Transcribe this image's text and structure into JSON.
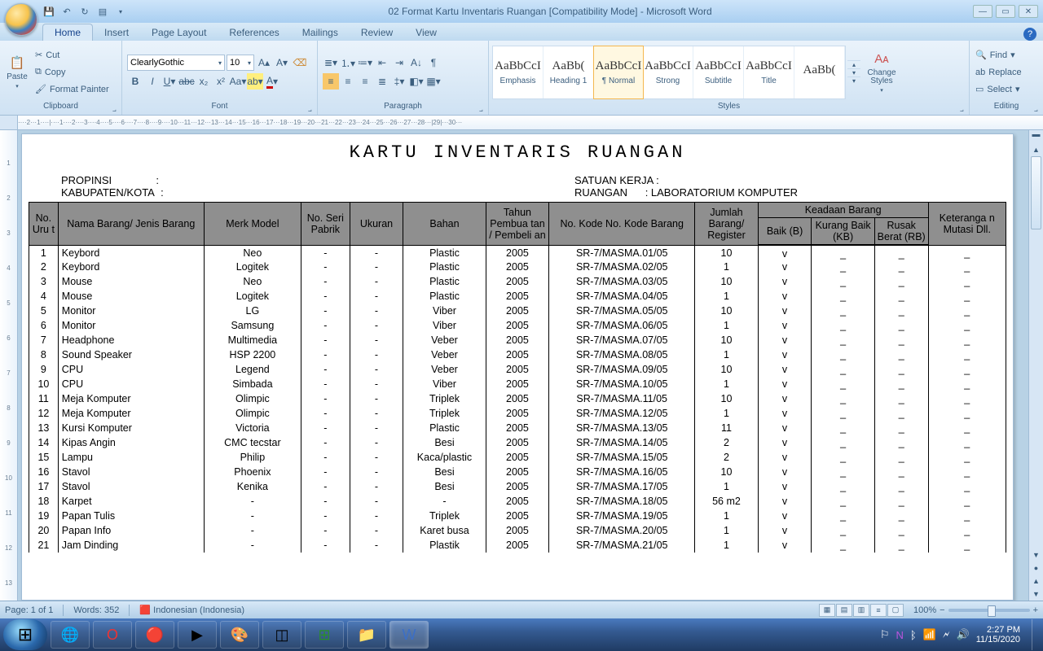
{
  "window": {
    "title": "02 Format Kartu Inventaris Ruangan [Compatibility Mode] - Microsoft Word"
  },
  "tabs": [
    "Home",
    "Insert",
    "Page Layout",
    "References",
    "Mailings",
    "Review",
    "View"
  ],
  "active_tab": "Home",
  "clipboard": {
    "label": "Clipboard",
    "paste": "Paste",
    "cut": "Cut",
    "copy": "Copy",
    "fmt": "Format Painter"
  },
  "font": {
    "label": "Font",
    "name": "ClearlyGothic",
    "size": "10"
  },
  "paragraph": {
    "label": "Paragraph"
  },
  "styles": {
    "label": "Styles",
    "items": [
      {
        "prev": "AaBbCcI",
        "name": "Emphasis"
      },
      {
        "prev": "AaBb(",
        "name": "Heading 1"
      },
      {
        "prev": "AaBbCcI",
        "name": "¶ Normal",
        "sel": true
      },
      {
        "prev": "AaBbCcI",
        "name": "Strong"
      },
      {
        "prev": "AaBbCcI",
        "name": "Subtitle"
      },
      {
        "prev": "AaBbCcI",
        "name": "Title"
      },
      {
        "prev": "AaBb(",
        "name": ""
      }
    ],
    "change": "Change Styles"
  },
  "editing": {
    "label": "Editing",
    "find": "Find",
    "replace": "Replace",
    "select": "Select"
  },
  "ruler": "····2···1····|····1····2····3····4····5····6····7····8····9····10···11···12···13···14···15···16···17···18···19···20···21···22···23···24···25···26···27···28···|29|···30···",
  "vruler": [
    "",
    "1",
    "2",
    "3",
    "4",
    "5",
    "6",
    "7",
    "8",
    "9",
    "10",
    "11",
    "12",
    "13"
  ],
  "doc": {
    "title": "KARTU INVENTARIS RUANGAN",
    "propinsi_l": "PROPINSI",
    "propinsi_v": ":",
    "kab_l": "KABUPATEN/KOTA",
    "kab_v": ":",
    "satuan_l": "SATUAN KERJA :",
    "ruangan_l": "RUANGAN",
    "ruangan_v": ": LABORATORIUM KOMPUTER",
    "headers": {
      "no": "No. Uru t",
      "nama": "Nama Barang/ Jenis Barang",
      "merk": "Merk Model",
      "seri": "No. Seri Pabrik",
      "uk": "Ukuran",
      "bahan": "Bahan",
      "tahun": "Tahun Pembua tan / Pembeli an",
      "kode": "No. Kode\nNo. Kode Barang",
      "jml": "Jumlah Barang/ Register",
      "keadaan": "Keadaan Barang",
      "baik": "Baik (B)",
      "kb": "Kurang Baik (KB)",
      "rb": "Rusak Berat (RB)",
      "ket": "Keteranga n Mutasi Dll."
    },
    "rows": [
      [
        "1",
        "Keybord",
        "Neo",
        "-",
        "-",
        "Plastic",
        "2005",
        "SR-7/MASMA.01/05",
        "10",
        "v",
        "_",
        "_",
        "_"
      ],
      [
        "2",
        "Keybord",
        "Logitek",
        "-",
        "-",
        "Plastic",
        "2005",
        "SR-7/MASMA.02/05",
        "1",
        "v",
        "_",
        "_",
        "_"
      ],
      [
        "3",
        "Mouse",
        "Neo",
        "-",
        "-",
        "Plastic",
        "2005",
        "SR-7/MASMA.03/05",
        "10",
        "v",
        "_",
        "_",
        "_"
      ],
      [
        "4",
        "Mouse",
        "Logitek",
        "-",
        "-",
        "Plastic",
        "2005",
        "SR-7/MASMA.04/05",
        "1",
        "v",
        "_",
        "_",
        "_"
      ],
      [
        "5",
        "Monitor",
        "LG",
        "-",
        "-",
        "Viber",
        "2005",
        "SR-7/MASMA.05/05",
        "10",
        "v",
        "_",
        "_",
        "_"
      ],
      [
        "6",
        "Monitor",
        "Samsung",
        "-",
        "-",
        "Viber",
        "2005",
        "SR-7/MASMA.06/05",
        "1",
        "v",
        "_",
        "_",
        "_"
      ],
      [
        "7",
        "Headphone",
        "Multimedia",
        "-",
        "-",
        "Veber",
        "2005",
        "SR-7/MASMA.07/05",
        "10",
        "v",
        "_",
        "_",
        "_"
      ],
      [
        "8",
        "Sound Speaker",
        "HSP 2200",
        "-",
        "-",
        "Veber",
        "2005",
        "SR-7/MASMA.08/05",
        "1",
        "v",
        "_",
        "_",
        "_"
      ],
      [
        "9",
        "CPU",
        "Legend",
        "-",
        "-",
        "Veber",
        "2005",
        "SR-7/MASMA.09/05",
        "10",
        "v",
        "_",
        "_",
        "_"
      ],
      [
        "10",
        "CPU",
        "Simbada",
        "-",
        "-",
        "Viber",
        "2005",
        "SR-7/MASMA.10/05",
        "1",
        "v",
        "_",
        "_",
        "_"
      ],
      [
        "11",
        "Meja Komputer",
        "Olimpic",
        "-",
        "-",
        "Triplek",
        "2005",
        "SR-7/MASMA.11/05",
        "10",
        "v",
        "_",
        "_",
        "_"
      ],
      [
        "12",
        "Meja Komputer",
        "Olimpic",
        "-",
        "-",
        "Triplek",
        "2005",
        "SR-7/MASMA.12/05",
        "1",
        "v",
        "_",
        "_",
        "_"
      ],
      [
        "13",
        "Kursi Komputer",
        "Victoria",
        "-",
        "-",
        "Plastic",
        "2005",
        "SR-7/MASMA.13/05",
        "11",
        "v",
        "_",
        "_",
        "_"
      ],
      [
        "14",
        "Kipas Angin",
        "CMC tecstar",
        "-",
        "-",
        "Besi",
        "2005",
        "SR-7/MASMA.14/05",
        "2",
        "v",
        "_",
        "_",
        "_"
      ],
      [
        "15",
        "Lampu",
        "Philip",
        "-",
        "-",
        "Kaca/plastic",
        "2005",
        "SR-7/MASMA.15/05",
        "2",
        "v",
        "_",
        "_",
        "_"
      ],
      [
        "16",
        "Stavol",
        "Phoenix",
        "-",
        "-",
        "Besi",
        "2005",
        "SR-7/MASMA.16/05",
        "10",
        "v",
        "_",
        "_",
        "_"
      ],
      [
        "17",
        "Stavol",
        "Kenika",
        "-",
        "-",
        "Besi",
        "2005",
        "SR-7/MASMA.17/05",
        "1",
        "v",
        "_",
        "_",
        "_"
      ],
      [
        "18",
        "Karpet",
        "-",
        "-",
        "-",
        "-",
        "2005",
        "SR-7/MASMA.18/05",
        "56 m2",
        "v",
        "_",
        "_",
        "_"
      ],
      [
        "19",
        "Papan Tulis",
        "-",
        "-",
        "-",
        "Triplek",
        "2005",
        "SR-7/MASMA.19/05",
        "1",
        "v",
        "_",
        "_",
        "_"
      ],
      [
        "20",
        "Papan Info",
        "-",
        "-",
        "-",
        "Karet busa",
        "2005",
        "SR-7/MASMA.20/05",
        "1",
        "v",
        "_",
        "_",
        "_"
      ],
      [
        "21",
        "Jam Dinding",
        "-",
        "-",
        "-",
        "Plastik",
        "2005",
        "SR-7/MASMA.21/05",
        "1",
        "v",
        "_",
        "_",
        "_"
      ]
    ]
  },
  "status": {
    "page": "Page: 1 of 1",
    "words": "Words: 352",
    "lang": "Indonesian (Indonesia)",
    "zoom": "100%"
  },
  "taskbar": {
    "time": "2:27 PM",
    "date": "11/15/2020"
  }
}
